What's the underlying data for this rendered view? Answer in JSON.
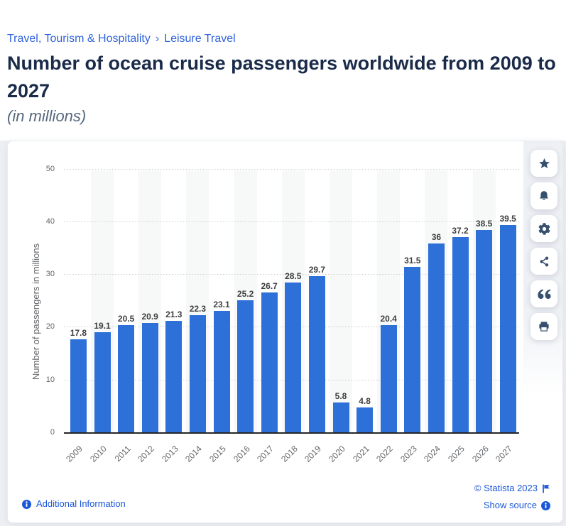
{
  "breadcrumb": {
    "items": [
      "Travel, Tourism & Hospitality",
      "Leisure Travel"
    ],
    "separator": "›"
  },
  "header": {
    "title": "Number of ocean cruise passengers worldwide from 2009 to 2027",
    "subtitle": "(in millions)"
  },
  "chart_data": {
    "type": "bar",
    "categories": [
      "2009",
      "2010",
      "2011",
      "2012",
      "2013",
      "2014",
      "2015",
      "2016",
      "2017",
      "2018",
      "2019",
      "2020",
      "2021",
      "2022",
      "2023",
      "2024",
      "2025",
      "2026",
      "2027"
    ],
    "values": [
      17.8,
      19.1,
      20.5,
      20.9,
      21.3,
      22.3,
      23.1,
      25.2,
      26.7,
      28.5,
      29.7,
      5.8,
      4.8,
      20.4,
      31.5,
      36,
      37.2,
      38.5,
      39.5
    ],
    "value_labels": [
      "17.8",
      "19.1",
      "20.5",
      "20.9",
      "21.3",
      "22.3",
      "23.1",
      "25.2",
      "26.7",
      "28.5",
      "29.7",
      "5.8",
      "4.8",
      "20.4",
      "31.5",
      "36",
      "37.2",
      "38.5",
      "39.5"
    ],
    "ylabel": "Number of passengers in millions",
    "xlabel": "",
    "yticks": [
      0,
      10,
      20,
      30,
      40,
      50
    ],
    "ylim": [
      0,
      50
    ],
    "grid": "dotted horizontal",
    "legend": "none",
    "bar_color": "#2c70d8",
    "alt_band_color": "#f7f8f8"
  },
  "toolbar": {
    "buttons": [
      {
        "name": "favorite",
        "icon": "star-icon"
      },
      {
        "name": "notification",
        "icon": "bell-icon"
      },
      {
        "name": "settings",
        "icon": "gear-icon"
      },
      {
        "name": "share",
        "icon": "share-icon"
      },
      {
        "name": "cite",
        "icon": "quote-icon"
      },
      {
        "name": "print",
        "icon": "print-icon"
      }
    ]
  },
  "footer": {
    "additional_information": "Additional Information",
    "copyright": "© Statista 2023",
    "show_source": "Show source"
  },
  "colors": {
    "bar": "#2c70d8",
    "link": "#2f63dc",
    "footer_link": "#1b57d9",
    "title": "#1a2b4a",
    "icon": "#36506e",
    "page_backdrop": "#edeff3"
  }
}
